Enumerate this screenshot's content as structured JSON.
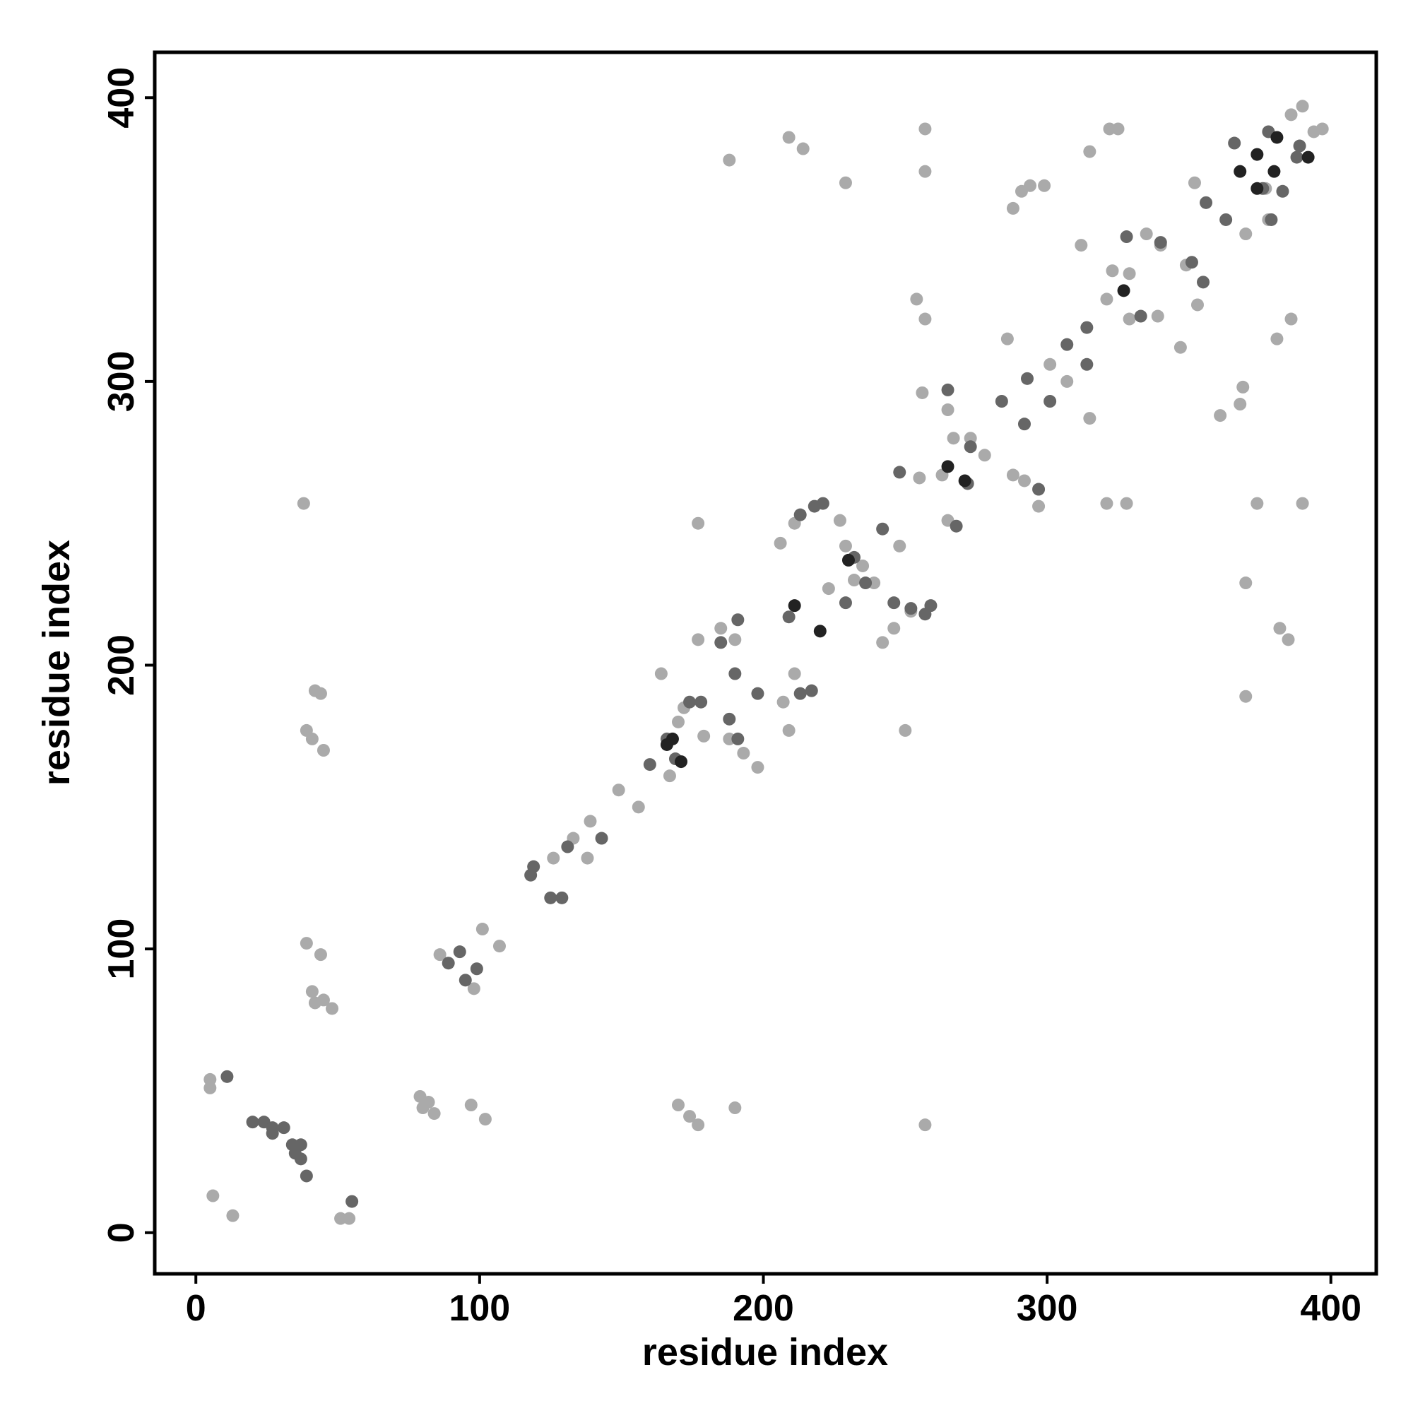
{
  "chart_data": {
    "type": "scatter",
    "x_label": "residue index",
    "y_label": "residue index",
    "xlim": [
      -14.5,
      416
    ],
    "ylim": [
      -14.5,
      416
    ],
    "xticks": [
      0,
      100,
      200,
      300,
      400
    ],
    "yticks": [
      0,
      100,
      200,
      300,
      400
    ],
    "series": [
      {
        "color": "#aaaaaa",
        "x": [
          5,
          5,
          6,
          13,
          51,
          54,
          38,
          39,
          42,
          44,
          39,
          41,
          45,
          44,
          41,
          45,
          48,
          42,
          79,
          82,
          84,
          80,
          86,
          98,
          97,
          102,
          101,
          107,
          126,
          133,
          138,
          139,
          149,
          156,
          164,
          172,
          170,
          179,
          167,
          177,
          188,
          209,
          214,
          229,
          170,
          174,
          177,
          190,
          177,
          185,
          190,
          198,
          193,
          188,
          207,
          209,
          211,
          206,
          211,
          223,
          227,
          229,
          232,
          235,
          239,
          242,
          246,
          252,
          250,
          248,
          255,
          257,
          257,
          256,
          254,
          257,
          257,
          263,
          265,
          267,
          265,
          273,
          278,
          286,
          288,
          291,
          294,
          299,
          288,
          292,
          297,
          301,
          307,
          312,
          315,
          315,
          322,
          325,
          321,
          328,
          321,
          323,
          329,
          329,
          339,
          335,
          340,
          347,
          349,
          353,
          352,
          361,
          368,
          369,
          370,
          374,
          370,
          370,
          378,
          377,
          382,
          385,
          381,
          386,
          390,
          386,
          390,
          394,
          397
        ],
        "y": [
          54,
          51,
          13,
          6,
          5,
          5,
          257,
          102,
          191,
          190,
          177,
          174,
          170,
          98,
          85,
          82,
          79,
          81,
          48,
          46,
          42,
          44,
          98,
          86,
          45,
          40,
          107,
          101,
          132,
          139,
          132,
          145,
          156,
          150,
          197,
          185,
          180,
          175,
          161,
          250,
          378,
          386,
          382,
          370,
          45,
          41,
          38,
          44,
          209,
          213,
          209,
          164,
          169,
          174,
          187,
          177,
          197,
          243,
          250,
          227,
          251,
          242,
          230,
          235,
          229,
          208,
          213,
          219,
          177,
          242,
          266,
          389,
          374,
          296,
          329,
          322,
          38,
          267,
          290,
          280,
          251,
          280,
          274,
          315,
          361,
          367,
          369,
          369,
          267,
          265,
          256,
          306,
          300,
          348,
          381,
          287,
          389,
          389,
          257,
          257,
          329,
          339,
          322,
          338,
          323,
          352,
          348,
          312,
          341,
          327,
          370,
          288,
          292,
          298,
          229,
          257,
          189,
          352,
          357,
          368,
          213,
          209,
          315,
          322,
          257,
          394,
          397,
          388,
          389
        ]
      },
      {
        "color": "#666666",
        "x": [
          11,
          55,
          20,
          24,
          27,
          31,
          27,
          34,
          37,
          37,
          39,
          35,
          89,
          93,
          95,
          99,
          118,
          119,
          125,
          129,
          131,
          143,
          160,
          166,
          169,
          174,
          178,
          185,
          191,
          188,
          191,
          198,
          190,
          209,
          213,
          217,
          213,
          218,
          221,
          229,
          232,
          236,
          242,
          246,
          252,
          257,
          259,
          248,
          265,
          268,
          272,
          273,
          284,
          292,
          293,
          301,
          297,
          307,
          314,
          314,
          328,
          333,
          340,
          351,
          355,
          356,
          363,
          366,
          379,
          376,
          383,
          389,
          388,
          378
        ],
        "y": [
          55,
          11,
          39,
          39,
          37,
          37,
          35,
          31,
          31,
          26,
          20,
          28,
          95,
          99,
          89,
          93,
          126,
          129,
          118,
          118,
          136,
          139,
          165,
          174,
          167,
          187,
          187,
          208,
          216,
          181,
          174,
          190,
          197,
          217,
          190,
          191,
          253,
          256,
          257,
          222,
          238,
          229,
          248,
          222,
          220,
          218,
          221,
          268,
          297,
          249,
          264,
          277,
          293,
          285,
          301,
          293,
          262,
          313,
          306,
          319,
          351,
          323,
          349,
          342,
          335,
          363,
          357,
          384,
          357,
          368,
          367,
          383,
          379,
          388
        ]
      },
      {
        "color": "#222222",
        "x": [
          166,
          168,
          171,
          211,
          220,
          230,
          265,
          271,
          327,
          368,
          374,
          374,
          380,
          381,
          392
        ],
        "y": [
          172,
          174,
          166,
          221,
          212,
          237,
          270,
          265,
          332,
          374,
          380,
          368,
          374,
          386,
          379
        ]
      }
    ]
  }
}
